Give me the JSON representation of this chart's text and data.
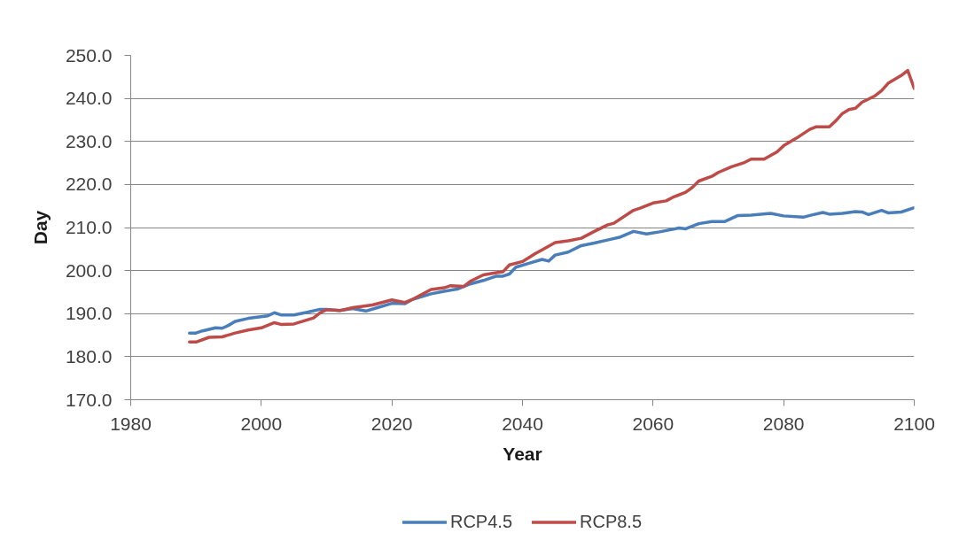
{
  "chart_data": {
    "type": "line",
    "xlabel": "Year",
    "ylabel": "Day",
    "xlim": [
      1980,
      2100
    ],
    "xticks": [
      1980,
      2000,
      2020,
      2040,
      2060,
      2080,
      2100
    ],
    "ylim": [
      170,
      250
    ],
    "yticks": [
      {
        "value": 170,
        "label": "170.0"
      },
      {
        "value": 180,
        "label": "180.0"
      },
      {
        "value": 190,
        "label": "190.0"
      },
      {
        "value": 200,
        "label": "200.0"
      },
      {
        "value": 210,
        "label": "210.0"
      },
      {
        "value": 220,
        "label": "220.0"
      },
      {
        "value": 230,
        "label": "230.0"
      },
      {
        "value": 240,
        "label": "240.0"
      },
      {
        "value": 250,
        "label": "250.0"
      }
    ],
    "grid": "y",
    "legend": "bottom",
    "series": [
      {
        "name": "RCP4.5",
        "color": "#4a7ebb",
        "x": [
          1989,
          1990,
          1991,
          1993,
          1994,
          1995,
          1996,
          1998,
          2001,
          2002,
          2003,
          2005,
          2007,
          2009,
          2010,
          2012,
          2014,
          2016,
          2018,
          2020,
          2022,
          2023,
          2026,
          2028,
          2030,
          2032,
          2034,
          2036,
          2037,
          2038,
          2039,
          2041,
          2043,
          2044,
          2045,
          2047,
          2049,
          2051,
          2053,
          2055,
          2057,
          2059,
          2061,
          2064,
          2065,
          2067,
          2069,
          2071,
          2073,
          2075,
          2078,
          2080,
          2083,
          2084,
          2086,
          2087,
          2089,
          2091,
          2092,
          2093,
          2095,
          2096,
          2098,
          2100
        ],
        "values": [
          185.5,
          185.5,
          186.0,
          186.7,
          186.6,
          187.3,
          188.2,
          188.9,
          189.5,
          190.2,
          189.7,
          189.7,
          190.3,
          191.0,
          191.0,
          190.7,
          191.2,
          190.6,
          191.5,
          192.4,
          192.3,
          193.2,
          194.6,
          195.2,
          195.7,
          196.9,
          197.7,
          198.7,
          198.7,
          199.2,
          200.8,
          201.7,
          202.6,
          202.2,
          203.6,
          204.3,
          205.8,
          206.4,
          207.1,
          207.8,
          209.1,
          208.5,
          209.0,
          209.9,
          209.7,
          210.9,
          211.4,
          211.4,
          212.8,
          212.9,
          213.3,
          212.7,
          212.4,
          212.8,
          213.5,
          213.1,
          213.3,
          213.7,
          213.6,
          213.0,
          214.0,
          213.4,
          213.6,
          214.6
        ]
      },
      {
        "name": "RCP8.5",
        "color": "#be4b48",
        "x": [
          1989,
          1990,
          1992,
          1994,
          1996,
          1998,
          2000,
          2002,
          2003,
          2005,
          2008,
          2009,
          2010,
          2012,
          2014,
          2017,
          2020,
          2022,
          2023,
          2026,
          2028,
          2029,
          2031,
          2032,
          2034,
          2036,
          2037,
          2038,
          2040,
          2042,
          2043,
          2045,
          2047,
          2049,
          2051,
          2053,
          2054,
          2057,
          2058,
          2060,
          2062,
          2063,
          2065,
          2066,
          2067,
          2069,
          2070,
          2072,
          2074,
          2075,
          2077,
          2079,
          2080,
          2082,
          2084,
          2085,
          2087,
          2088,
          2089,
          2090,
          2091,
          2092,
          2094,
          2095,
          2096,
          2098,
          2099,
          2100
        ],
        "values": [
          183.4,
          183.4,
          184.5,
          184.6,
          185.5,
          186.2,
          186.7,
          187.9,
          187.5,
          187.6,
          189.0,
          190.2,
          190.9,
          190.7,
          191.4,
          192.0,
          193.2,
          192.6,
          193.2,
          195.6,
          196.0,
          196.5,
          196.3,
          197.5,
          199.0,
          199.5,
          199.7,
          201.3,
          202.1,
          204.0,
          204.8,
          206.5,
          206.9,
          207.5,
          209.1,
          210.6,
          211.0,
          214.0,
          214.5,
          215.7,
          216.2,
          217.0,
          218.2,
          219.3,
          220.8,
          221.9,
          222.8,
          224.1,
          225.1,
          225.9,
          225.9,
          227.6,
          229.0,
          230.8,
          232.8,
          233.4,
          233.4,
          234.8,
          236.5,
          237.4,
          237.7,
          239.1,
          240.6,
          241.8,
          243.5,
          245.3,
          246.5,
          242.3
        ]
      }
    ]
  }
}
